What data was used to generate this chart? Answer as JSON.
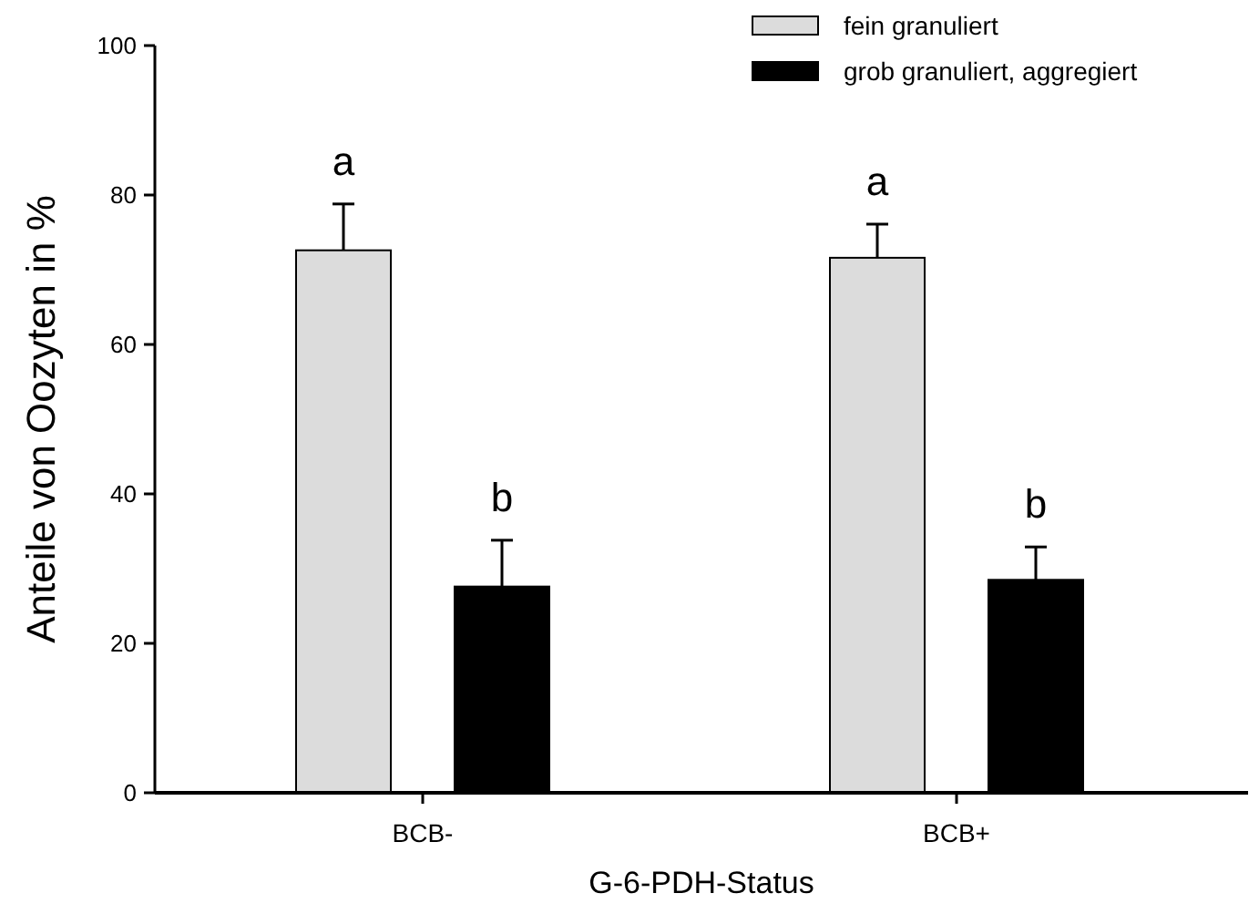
{
  "chart_data": {
    "type": "bar",
    "xlabel": "G-6-PDH-Status",
    "ylabel": "Anteile von Oozyten in %",
    "categories": [
      "BCB-",
      "BCB+"
    ],
    "series": [
      {
        "name": "fein granuliert",
        "color": "#dcdcdc",
        "values": [
          72.6,
          71.6
        ],
        "errors": [
          6.2,
          4.5
        ],
        "value_labels": [
          "a",
          "a"
        ]
      },
      {
        "name": "grob granuliert, aggregiert",
        "color": "#000000",
        "values": [
          27.6,
          28.5
        ],
        "errors": [
          6.2,
          4.4
        ],
        "value_labels": [
          "b",
          "b"
        ]
      }
    ],
    "ylim": [
      0,
      100
    ],
    "yticks": [
      0,
      20,
      40,
      60,
      80,
      100
    ],
    "grid": false,
    "legend": "top right"
  }
}
